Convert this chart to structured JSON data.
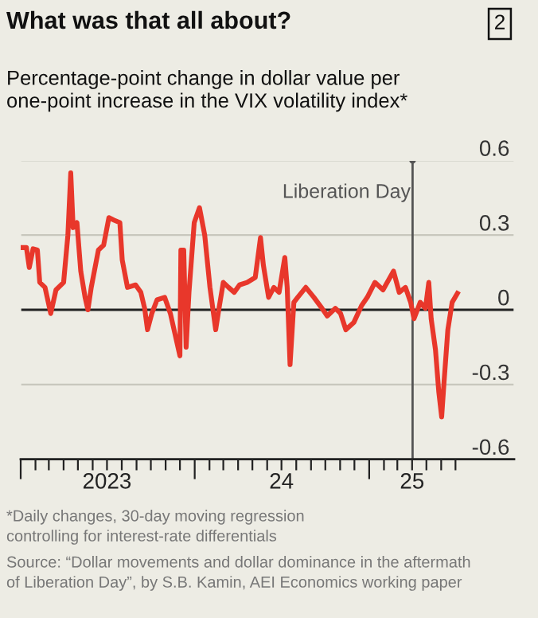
{
  "chart_data": {
    "type": "line",
    "title": "What was that all about?",
    "subtitle": "Percentage-point change in dollar value per\none-point increase in the VIX volatility index*",
    "annotations": [
      "2",
      "*Daily changes, 30-day moving regression\ncontrolling for interest-rate differentials",
      "Source: “Dollar movements and dollar dominance in the aftermath\nof Liberation Day”, by S.B. Kamin, AEI Economics working paper"
    ],
    "series": [
      {
        "color": "#e8372b",
        "x": [
          "2023-01-02",
          "2023-01-13",
          "2023-01-19",
          "2023-01-27",
          "2023-02-05",
          "2023-02-10",
          "2023-02-21",
          "2023-03-05",
          "2023-03-16",
          "2023-04-01",
          "2023-04-10",
          "2023-04-16",
          "2023-04-21",
          "2023-04-29",
          "2023-05-07",
          "2023-05-16",
          "2023-05-22",
          "2023-05-29",
          "2023-06-13",
          "2023-06-24",
          "2023-07-05",
          "2023-07-16",
          "2023-07-28",
          "2023-08-02",
          "2023-08-13",
          "2023-08-30",
          "2023-09-10",
          "2023-09-18",
          "2023-09-24",
          "2023-10-03",
          "2023-10-14",
          "2023-10-30",
          "2023-11-11",
          "2023-12-01",
          "2023-12-03",
          "2023-12-09",
          "2023-12-14",
          "2023-12-20",
          "2023-12-31",
          "2024-01-11",
          "2024-01-22",
          "2024-02-02",
          "2024-02-14",
          "2024-02-21",
          "2024-03-01",
          "2024-03-12",
          "2024-03-24",
          "2024-04-04",
          "2024-04-20",
          "2024-05-07",
          "2024-05-18",
          "2024-05-24",
          "2024-06-04",
          "2024-06-15",
          "2024-06-26",
          "2024-07-08",
          "2024-07-13",
          "2024-07-19",
          "2024-07-27",
          "2024-08-04",
          "2024-08-21",
          "2024-09-07",
          "2024-09-24",
          "2024-10-05",
          "2024-10-22",
          "2024-11-02",
          "2024-11-13",
          "2024-11-30",
          "2024-12-16",
          "2024-12-28",
          "2025-01-13",
          "2025-01-30",
          "2025-02-21",
          "2025-03-05",
          "2025-03-18",
          "2025-03-29",
          "2025-04-05",
          "2025-04-18",
          "2025-04-29",
          "2025-05-06",
          "2025-05-11",
          "2025-05-20",
          "2025-05-27",
          "2025-06-02",
          "2025-06-07",
          "2025-06-15",
          "2025-06-24",
          "2025-07-05"
        ],
        "values": [
          0.25,
          0.25,
          0.17,
          0.245,
          0.24,
          0.11,
          0.09,
          -0.015,
          0.08,
          0.11,
          0.3,
          0.55,
          0.33,
          0.35,
          0.155,
          0.05,
          0.0,
          0.09,
          0.24,
          0.26,
          0.37,
          0.36,
          0.35,
          0.2,
          0.09,
          0.1,
          0.07,
          0.006,
          -0.08,
          -0.015,
          0.04,
          0.05,
          -0.015,
          -0.185,
          0.24,
          0.24,
          -0.15,
          0.07,
          0.35,
          0.41,
          0.3,
          0.09,
          -0.08,
          0.006,
          0.11,
          0.09,
          0.07,
          0.1,
          0.11,
          0.13,
          0.29,
          0.18,
          0.05,
          0.09,
          0.07,
          0.21,
          0.09,
          -0.22,
          0.03,
          0.05,
          0.09,
          0.05,
          0.006,
          -0.025,
          0.006,
          -0.015,
          -0.08,
          -0.05,
          0.017,
          0.05,
          0.11,
          0.08,
          0.155,
          0.07,
          0.09,
          0.03,
          -0.036,
          0.03,
          0.006,
          0.11,
          -0.036,
          -0.16,
          -0.33,
          -0.43,
          -0.29,
          -0.08,
          0.03,
          0.066
        ]
      }
    ],
    "xlim": [
      "2023-01-01",
      "2025-11-01"
    ],
    "xticks": [
      {
        "value": "2023-01-01",
        "label": null
      },
      {
        "value": "2023-02-01",
        "label": null
      },
      {
        "value": "2023-03-01",
        "label": null
      },
      {
        "value": "2023-04-01",
        "label": null
      },
      {
        "value": "2023-05-01",
        "label": null
      },
      {
        "value": "2023-06-01",
        "label": null
      },
      {
        "value": "2023-07-01",
        "label": null
      },
      {
        "value": "2023-08-01",
        "label": null
      },
      {
        "value": "2023-09-01",
        "label": null
      },
      {
        "value": "2023-10-01",
        "label": null
      },
      {
        "value": "2023-11-01",
        "label": null
      },
      {
        "value": "2023-12-01",
        "label": null
      },
      {
        "value": "2024-01-01",
        "label": null
      },
      {
        "value": "2024-02-01",
        "label": null
      },
      {
        "value": "2024-03-01",
        "label": null
      },
      {
        "value": "2024-04-01",
        "label": null
      },
      {
        "value": "2024-05-01",
        "label": null
      },
      {
        "value": "2024-06-01",
        "label": null
      },
      {
        "value": "2024-07-01",
        "label": null
      },
      {
        "value": "2024-08-01",
        "label": null
      },
      {
        "value": "2024-09-01",
        "label": null
      },
      {
        "value": "2024-10-01",
        "label": null
      },
      {
        "value": "2024-11-01",
        "label": null
      },
      {
        "value": "2024-12-01",
        "label": null
      },
      {
        "value": "2025-01-01",
        "label": null
      },
      {
        "value": "2025-02-01",
        "label": null
      },
      {
        "value": "2025-03-01",
        "label": null
      },
      {
        "value": "2025-04-01",
        "label": null
      },
      {
        "value": "2025-05-01",
        "label": null
      },
      {
        "value": "2025-06-01",
        "label": null
      },
      {
        "value": "2025-07-01",
        "label": null
      },
      {
        "value": "2023-07-01",
        "label": "2023"
      },
      {
        "value": "2024-07-01",
        "label": "24"
      },
      {
        "value": "2025-04-01",
        "label": "25"
      }
    ],
    "ylim": [
      -0.6,
      0.6
    ],
    "yticks": [
      -0.6,
      -0.3,
      0,
      0.3,
      0.6
    ],
    "grid": "y",
    "legend": false,
    "marker": "none",
    "line_style": "solid",
    "ref_lines": [
      {
        "axis": "x",
        "value": "2025-04-02",
        "label": "Liberation Day",
        "color": "#555555"
      }
    ]
  }
}
